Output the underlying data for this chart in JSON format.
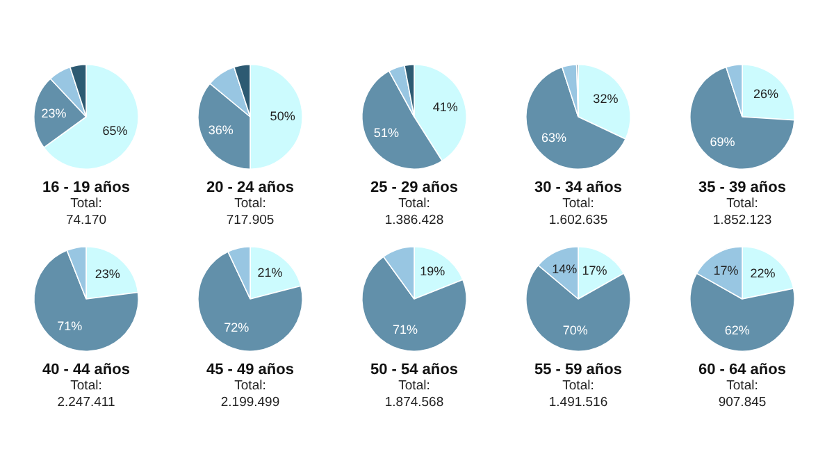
{
  "chart_data": [
    {
      "type": "pie",
      "title": "16 - 19 años",
      "annotations": [
        "Total:",
        "74.170"
      ],
      "categories": [
        null,
        null,
        null,
        null
      ],
      "values": [
        65,
        23,
        7,
        5
      ],
      "value_labels": [
        "65%",
        "23%",
        null,
        null
      ],
      "colors": [
        "#ccfbfe",
        "#6290aa",
        "#98c6e2",
        "#2d5a72"
      ]
    },
    {
      "type": "pie",
      "title": "20 - 24 años",
      "annotations": [
        "Total:",
        "717.905"
      ],
      "categories": [
        null,
        null,
        null,
        null
      ],
      "values": [
        50,
        36,
        9,
        5
      ],
      "value_labels": [
        "50%",
        "36%",
        null,
        null
      ],
      "colors": [
        "#ccfbfe",
        "#6290aa",
        "#98c6e2",
        "#2d5a72"
      ]
    },
    {
      "type": "pie",
      "title": "25 - 29 años",
      "annotations": [
        "Total:",
        "1.386.428"
      ],
      "categories": [
        null,
        null,
        null,
        null
      ],
      "values": [
        41,
        51,
        5,
        3
      ],
      "value_labels": [
        "41%",
        "51%",
        null,
        null
      ],
      "colors": [
        "#ccfbfe",
        "#6290aa",
        "#98c6e2",
        "#2d5a72"
      ]
    },
    {
      "type": "pie",
      "title": "30 - 34 años",
      "annotations": [
        "Total:",
        "1.602.635"
      ],
      "categories": [
        null,
        null,
        null,
        null
      ],
      "values": [
        32,
        63,
        4.5,
        0.5
      ],
      "value_labels": [
        "32%",
        "63%",
        null,
        null
      ],
      "colors": [
        "#ccfbfe",
        "#6290aa",
        "#98c6e2",
        "#2d5a72"
      ]
    },
    {
      "type": "pie",
      "title": "35 - 39 años",
      "annotations": [
        "Total:",
        "1.852.123"
      ],
      "categories": [
        null,
        null,
        null
      ],
      "values": [
        26,
        69,
        5
      ],
      "value_labels": [
        "26%",
        "69%",
        null
      ],
      "colors": [
        "#ccfbfe",
        "#6290aa",
        "#98c6e2"
      ]
    },
    {
      "type": "pie",
      "title": "40 - 44 años",
      "annotations": [
        "Total:",
        "2.247.411"
      ],
      "categories": [
        null,
        null,
        null
      ],
      "values": [
        23,
        71,
        6
      ],
      "value_labels": [
        "23%",
        "71%",
        null
      ],
      "colors": [
        "#ccfbfe",
        "#6290aa",
        "#98c6e2"
      ]
    },
    {
      "type": "pie",
      "title": "45 - 49 años",
      "annotations": [
        "Total:",
        "2.199.499"
      ],
      "categories": [
        null,
        null,
        null
      ],
      "values": [
        21,
        72,
        7
      ],
      "value_labels": [
        "21%",
        "72%",
        null
      ],
      "colors": [
        "#ccfbfe",
        "#6290aa",
        "#98c6e2"
      ]
    },
    {
      "type": "pie",
      "title": "50 - 54 años",
      "annotations": [
        "Total:",
        "1.874.568"
      ],
      "categories": [
        null,
        null,
        null
      ],
      "values": [
        19,
        71,
        10
      ],
      "value_labels": [
        "19%",
        "71%",
        null
      ],
      "colors": [
        "#ccfbfe",
        "#6290aa",
        "#98c6e2"
      ]
    },
    {
      "type": "pie",
      "title": "55 - 59 años",
      "annotations": [
        "Total:",
        "1.491.516"
      ],
      "categories": [
        null,
        null,
        null
      ],
      "values": [
        17,
        70,
        14
      ],
      "value_labels": [
        "17%",
        "70%",
        "14%"
      ],
      "colors": [
        "#ccfbfe",
        "#6290aa",
        "#98c6e2"
      ]
    },
    {
      "type": "pie",
      "title": "60 - 64 años",
      "annotations": [
        "Total:",
        "907.845"
      ],
      "categories": [
        null,
        null,
        null
      ],
      "values": [
        22,
        62,
        17
      ],
      "value_labels": [
        "22%",
        "62%",
        "17%"
      ],
      "colors": [
        "#ccfbfe",
        "#6290aa",
        "#98c6e2"
      ]
    }
  ]
}
